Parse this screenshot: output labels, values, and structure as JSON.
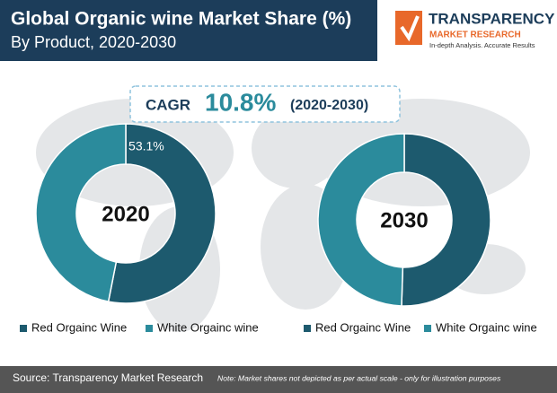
{
  "header": {
    "title": "Global Organic wine Market Share (%)",
    "subtitle": "By Product, 2020-2030"
  },
  "logo": {
    "name": "TRANSPARENCY",
    "sub": "MARKET RESEARCH",
    "tagline": "In-depth Analysis. Accurate Results"
  },
  "cagr": {
    "label": "CAGR",
    "value": "10.8%",
    "period": "(2020-2030)"
  },
  "chart_data": [
    {
      "type": "pie",
      "title": "2020",
      "categories": [
        "Red Orgainc Wine",
        "White Orgainc wine"
      ],
      "values": [
        53.1,
        46.9
      ],
      "value_labels": [
        "53.1%",
        null
      ],
      "colors": [
        "#1d5a6e",
        "#2b8b9c"
      ]
    },
    {
      "type": "pie",
      "title": "2030",
      "categories": [
        "Red Orgainc Wine",
        "White Orgainc wine"
      ],
      "values": [
        50.5,
        49.5
      ],
      "value_labels": [
        null,
        null
      ],
      "colors": [
        "#1d5a6e",
        "#2b8b9c"
      ]
    }
  ],
  "footer": {
    "source": "Source: Transparency Market Research",
    "note": "Note: Market shares not depicted as per actual scale - only for illustration purposes"
  }
}
